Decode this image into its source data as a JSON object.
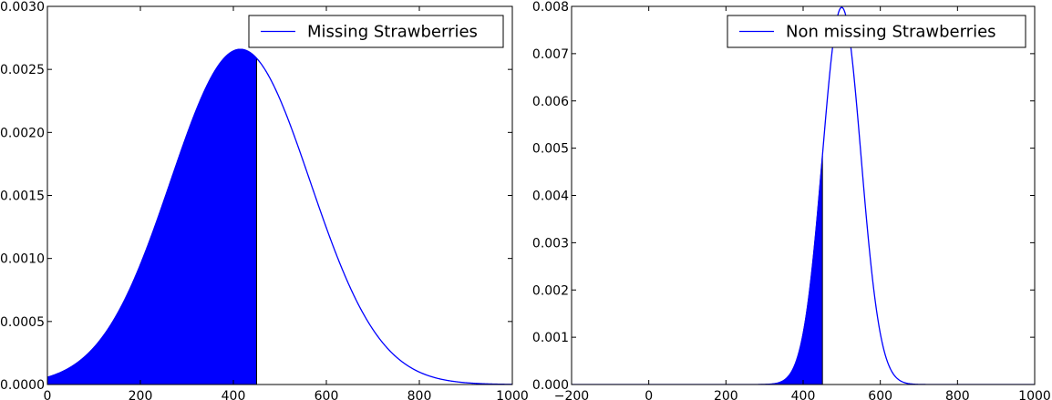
{
  "chart_data": [
    {
      "type": "area",
      "xlim": [
        0,
        1000
      ],
      "ylim": [
        0,
        0.003
      ],
      "xticks": [
        0,
        200,
        400,
        600,
        800,
        1000
      ],
      "xtick_labels": [
        "0",
        "200",
        "400",
        "600",
        "800",
        "1000"
      ],
      "yticks": [
        0,
        0.0005,
        0.001,
        0.0015,
        0.002,
        0.0025,
        0.003
      ],
      "ytick_labels": [
        "0.0000",
        "0.0005",
        "0.0010",
        "0.0015",
        "0.0020",
        "0.0025",
        "0.0030"
      ],
      "grid": false,
      "legend_position": "top-right",
      "series": [
        {
          "name": "Missing Strawberries",
          "color": "#0000ff",
          "distribution": "normal",
          "mean": 415,
          "sd": 150,
          "fill_to_x": 450,
          "fill_color": "#0000ff"
        }
      ]
    },
    {
      "type": "area",
      "xlim": [
        -200,
        1000
      ],
      "ylim": [
        0,
        0.008
      ],
      "xticks": [
        -200,
        0,
        200,
        400,
        600,
        800,
        1000
      ],
      "xtick_labels": [
        "−200",
        "0",
        "200",
        "400",
        "600",
        "800",
        "1000"
      ],
      "yticks": [
        0,
        0.001,
        0.002,
        0.003,
        0.004,
        0.005,
        0.006,
        0.007,
        0.008
      ],
      "ytick_labels": [
        "0.000",
        "0.001",
        "0.002",
        "0.003",
        "0.004",
        "0.005",
        "0.006",
        "0.007",
        "0.008"
      ],
      "grid": false,
      "legend_position": "top-right",
      "series": [
        {
          "name": "Non missing Strawberries",
          "color": "#0000ff",
          "distribution": "normal",
          "mean": 500,
          "sd": 50,
          "fill_to_x": 450,
          "fill_color": "#0000ff"
        }
      ]
    }
  ]
}
